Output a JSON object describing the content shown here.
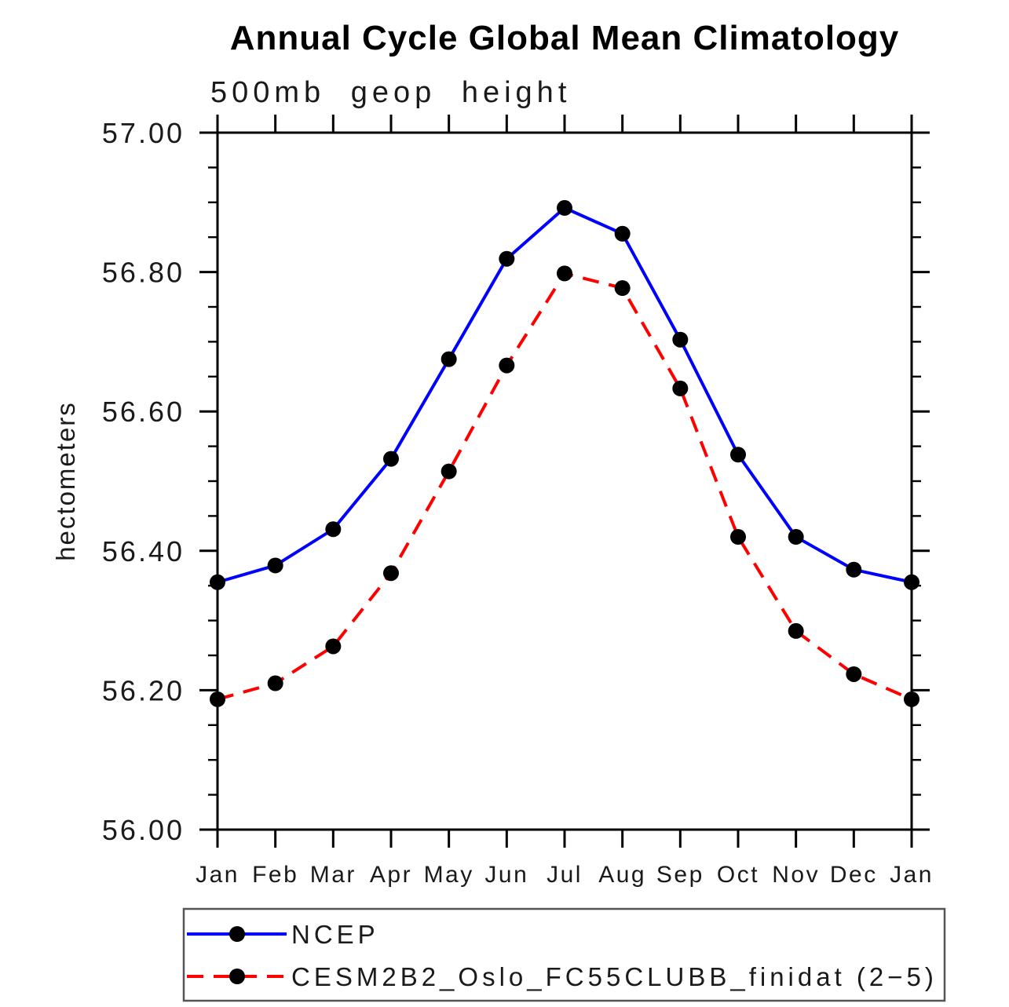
{
  "chart_data": {
    "type": "line",
    "title": "Annual Cycle Global Mean Climatology",
    "subtitle": "500mb geop height",
    "ylabel": "hectometers",
    "xlabel": "",
    "categories": [
      "Jan",
      "Feb",
      "Mar",
      "Apr",
      "May",
      "Jun",
      "Jul",
      "Aug",
      "Sep",
      "Oct",
      "Nov",
      "Dec",
      "Jan"
    ],
    "ylim": [
      56.0,
      57.0
    ],
    "ytick_major_step": 0.2,
    "ytick_minor_step": 0.05,
    "ytick_values": [
      57.0,
      56.8,
      56.6,
      56.4,
      56.2,
      56.0
    ],
    "ytick_labels": [
      "57.00",
      "56.80",
      "56.60",
      "56.40",
      "56.20",
      "56.00"
    ],
    "grid": false,
    "legend_position": "bottom",
    "axis_color": "#000000",
    "text_color": "#1a1a1a",
    "series": [
      {
        "name": "NCEP",
        "color": "#0000ff",
        "line_style": "solid",
        "marker": "filled-circle",
        "marker_color": "#000000",
        "values": [
          56.355,
          56.379,
          56.431,
          56.532,
          56.675,
          56.819,
          56.892,
          56.855,
          56.703,
          56.538,
          56.42,
          56.373,
          56.355
        ]
      },
      {
        "name": "CESM2B2_Oslo_FC55CLUBB_finidat (2−5)",
        "color": "#ff0000",
        "line_style": "dashed",
        "marker": "filled-circle",
        "marker_color": "#000000",
        "values": [
          56.187,
          56.21,
          56.263,
          56.368,
          56.514,
          56.666,
          56.798,
          56.777,
          56.633,
          56.42,
          56.285,
          56.223,
          56.187
        ]
      }
    ]
  }
}
